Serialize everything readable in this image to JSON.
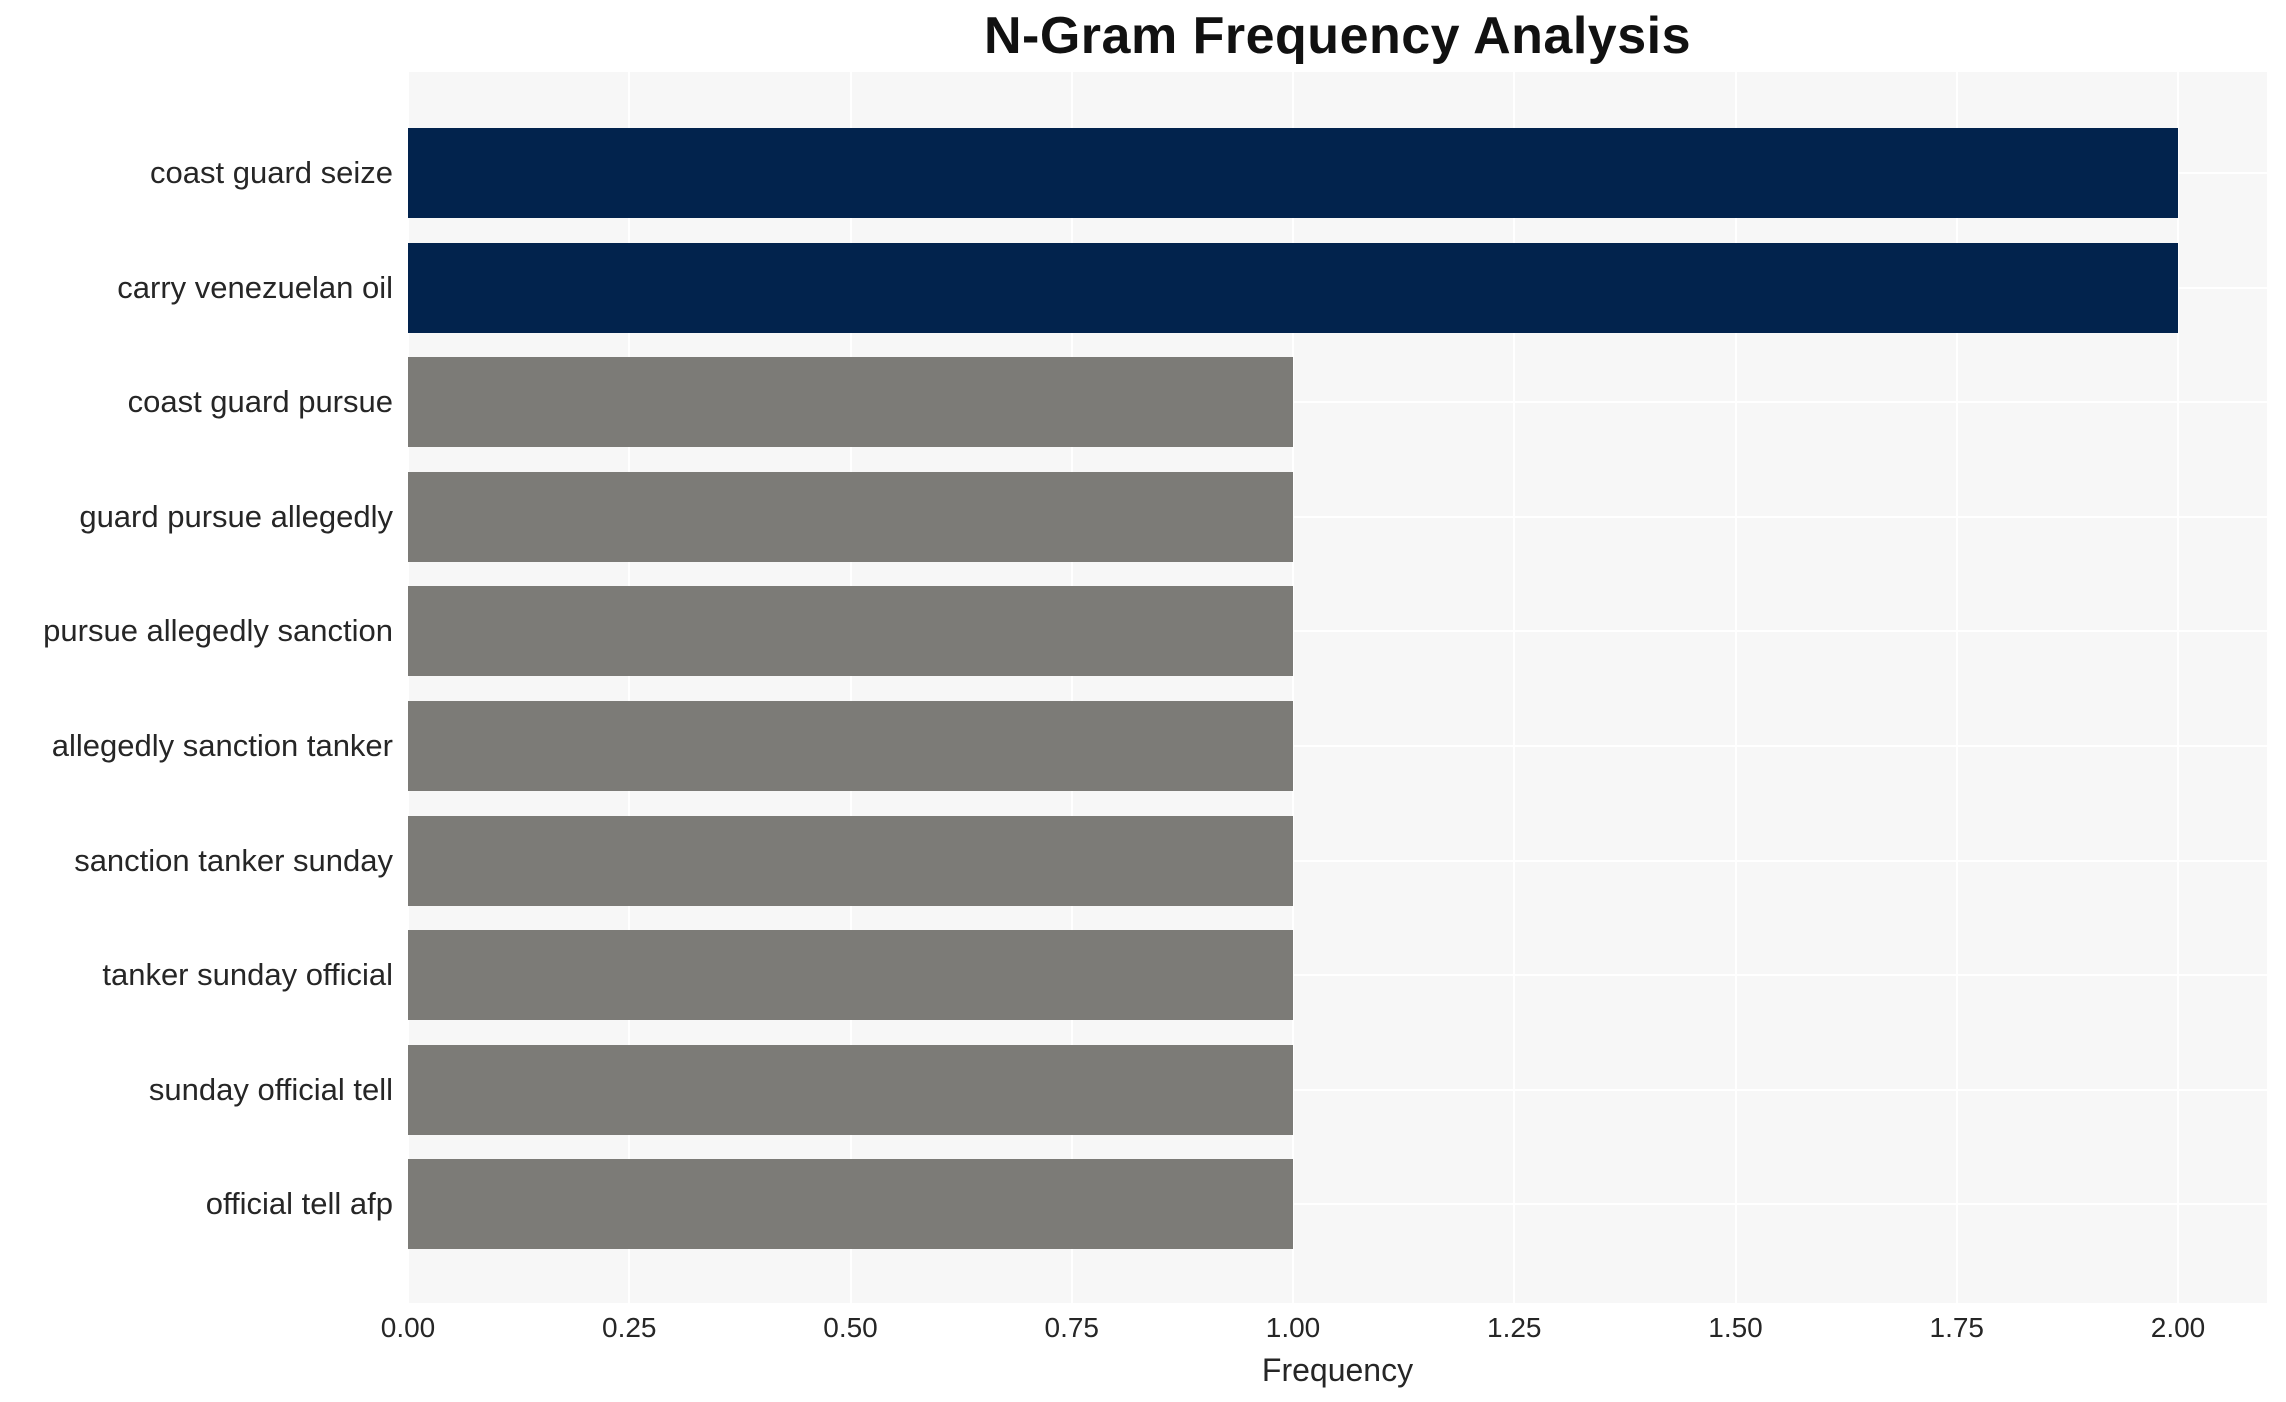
{
  "chart_data": {
    "type": "bar",
    "orientation": "horizontal",
    "title": "N-Gram Frequency Analysis",
    "xlabel": "Frequency",
    "ylabel": "",
    "categories": [
      "coast guard seize",
      "carry venezuelan oil",
      "coast guard pursue",
      "guard pursue allegedly",
      "pursue allegedly sanction",
      "allegedly sanction tanker",
      "sanction tanker sunday",
      "tanker sunday official",
      "sunday official tell",
      "official tell afp"
    ],
    "values": [
      2.0,
      2.0,
      1.0,
      1.0,
      1.0,
      1.0,
      1.0,
      1.0,
      1.0,
      1.0
    ],
    "bar_colors": [
      "#02234d",
      "#02234d",
      "#7c7b77",
      "#7c7b77",
      "#7c7b77",
      "#7c7b77",
      "#7c7b77",
      "#7c7b77",
      "#7c7b77",
      "#7c7b77"
    ],
    "xticks": [
      "0.00",
      "0.25",
      "0.50",
      "0.75",
      "1.00",
      "1.25",
      "1.50",
      "1.75",
      "2.00"
    ],
    "xlim": [
      0,
      2.1
    ],
    "grid": true,
    "legend_position": "none",
    "colors": {
      "highlight": "#02234d",
      "default_bar": "#7c7b77",
      "panel_background": "#f7f7f7",
      "gridline": "#ffffff",
      "tick_text": "#262626",
      "title_text": "#111111"
    }
  }
}
